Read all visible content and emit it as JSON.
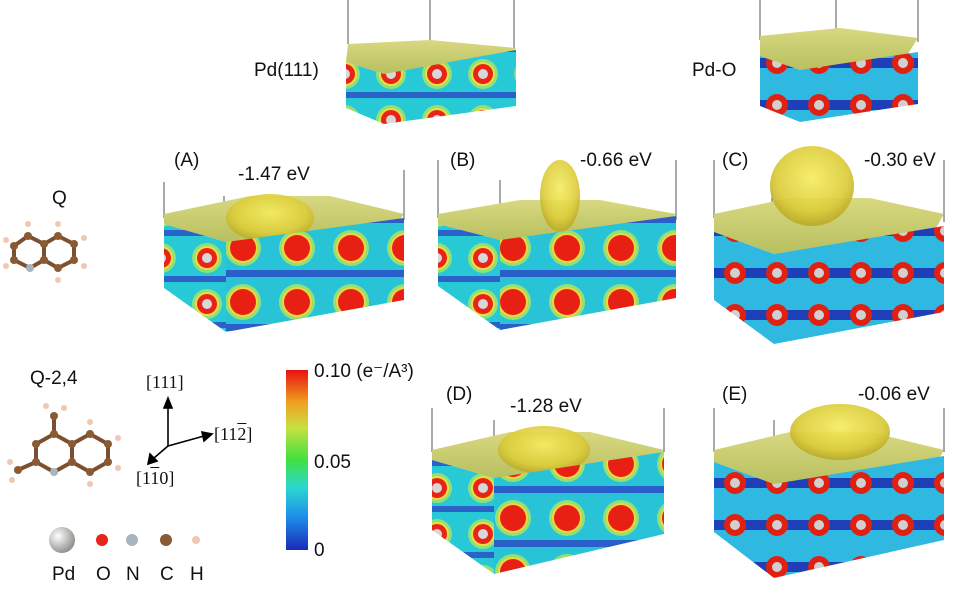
{
  "top_labels": {
    "pd111": "Pd(111)",
    "pdo": "Pd-O"
  },
  "molecules": {
    "q": "Q",
    "q24": "Q-2,4"
  },
  "panels": [
    {
      "letter": "(A)",
      "energy": "-1.47 eV"
    },
    {
      "letter": "(B)",
      "energy": "-0.66 eV"
    },
    {
      "letter": "(C)",
      "energy": "-0.30 eV"
    },
    {
      "letter": "(D)",
      "energy": "-1.28 eV"
    },
    {
      "letter": "(E)",
      "energy": "-0.06 eV"
    }
  ],
  "axes": {
    "a111": "[111]",
    "a112": "[11̅2]",
    "a110": "[1̅1°]"
  },
  "axes_display": {
    "a111": "[111]",
    "a112b": "[11",
    "a112c": "2",
    "a110a": "[1",
    "a110b": "1",
    "a110c": "0]"
  },
  "colorbar": {
    "max": "0.10",
    "mid": "0.05",
    "min": "0",
    "unit": "(e⁻/A³)"
  },
  "legend": [
    {
      "symbol": "Pd",
      "color": "#c8c8c4"
    },
    {
      "symbol": "O",
      "color": "#e8231a"
    },
    {
      "symbol": "N",
      "color": "#a8b4be"
    },
    {
      "symbol": "C",
      "color": "#8a5a32"
    },
    {
      "symbol": "H",
      "color": "#f0c8b0"
    }
  ]
}
